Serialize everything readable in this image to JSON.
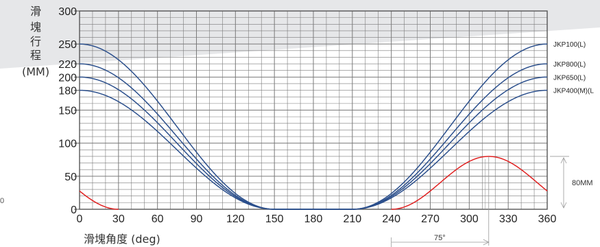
{
  "colors": {
    "blue": "#2b4f8c",
    "red": "#e02020",
    "grid": "#7a7a7a",
    "band": "#e6e7e9",
    "dim": "#9a9a9a"
  },
  "chart_data": {
    "type": "line",
    "ylabel_chars": [
      "滑",
      "塊",
      "行",
      "程"
    ],
    "ylabel_unit": "(MM)",
    "xlabel": "滑塊角度 (deg)",
    "xlim": [
      0,
      360
    ],
    "ylim": [
      0,
      300
    ],
    "x_ticks": [
      "0",
      "30",
      "60",
      "90",
      "120",
      "150",
      "180",
      "210",
      "240",
      "270",
      "300",
      "330",
      "360"
    ],
    "y_ticks": [
      "0",
      "50",
      "100",
      "150",
      "180",
      "200",
      "220",
      "250",
      "300"
    ],
    "grid": true,
    "series": [
      {
        "name": "JKP100(L)",
        "stroke": 250,
        "color_key": "blue"
      },
      {
        "name": "JKP800(L)",
        "stroke": 220,
        "color_key": "blue"
      },
      {
        "name": "JKP650(L)",
        "stroke": 200,
        "color_key": "blue"
      },
      {
        "name": "JKP400(M)(L",
        "stroke": 180,
        "color_key": "blue"
      }
    ],
    "red_curve": {
      "color_key": "red",
      "amplitude": 80,
      "peak_deg": 315,
      "visible_segments": [
        [
          0,
          30
        ],
        [
          240,
          360
        ]
      ]
    },
    "annotations": {
      "amplitude_label": "80MM",
      "angle_label": "75°"
    }
  },
  "stray_text": "0"
}
